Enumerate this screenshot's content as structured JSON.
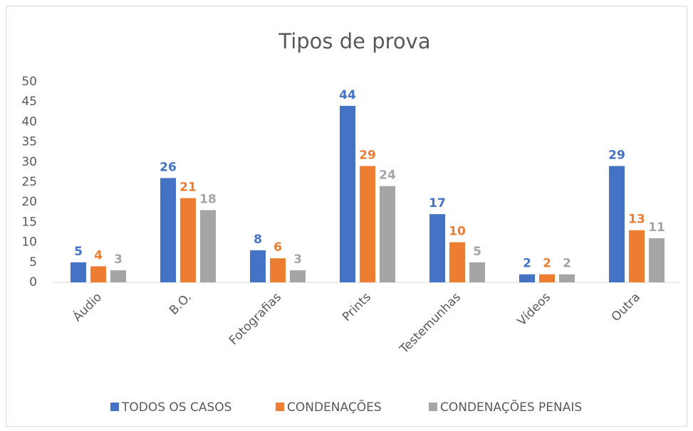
{
  "chart_data": {
    "type": "bar",
    "title": "Tipos de prova",
    "categories": [
      "Áudio",
      "B.O.",
      "Fotografias",
      "Prints",
      "Testemunhas",
      "Vídeos",
      "Outra"
    ],
    "series": [
      {
        "name": "TODOS OS CASOS",
        "color": "#4472c4",
        "values": [
          5,
          26,
          8,
          44,
          17,
          2,
          29
        ]
      },
      {
        "name": "CONDENAÇÕES",
        "color": "#ed7d31",
        "values": [
          4,
          21,
          6,
          29,
          10,
          2,
          13
        ]
      },
      {
        "name": "CONDENAÇÕES PENAIS",
        "color": "#a5a5a5",
        "values": [
          3,
          18,
          3,
          24,
          5,
          2,
          11
        ]
      }
    ],
    "ylim": [
      0,
      50
    ],
    "yticks": [
      0,
      5,
      10,
      15,
      20,
      25,
      30,
      35,
      40,
      45,
      50
    ],
    "grid": false,
    "legend": "bottom"
  }
}
